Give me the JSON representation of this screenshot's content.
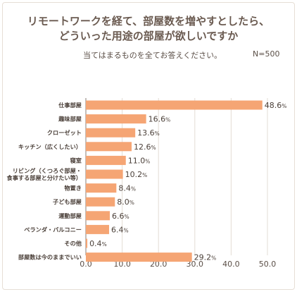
{
  "chart_data": {
    "type": "bar",
    "orientation": "horizontal",
    "title": "リモートワークを経て、部屋数を増やすとしたら、どういった用途の部屋が欲しいですか",
    "title_lines": [
      "リモートワークを経て、部屋数を増やすとしたら、",
      "どういった用途の部屋が欲しいですか"
    ],
    "subtitle": "当てはまるものを全てお答えください。",
    "sample_size": "N=500",
    "categories": [
      [
        "仕事部屋"
      ],
      [
        "趣味部屋"
      ],
      [
        "クローゼット"
      ],
      [
        "キッチン（広くしたい）"
      ],
      [
        "寝室"
      ],
      [
        "リビング（くつろぐ部屋・",
        "食事する部屋と分けたい等）"
      ],
      [
        "物置き"
      ],
      [
        "子ども部屋"
      ],
      [
        "運動部屋"
      ],
      [
        "ベランダ・バルコニー"
      ],
      [
        "その他"
      ],
      [
        "部屋数は今のままでいい"
      ]
    ],
    "values": [
      48.6,
      16.6,
      13.6,
      12.6,
      11.0,
      10.2,
      8.4,
      8.0,
      6.6,
      6.4,
      0.4,
      29.2
    ],
    "value_labels": [
      "48.6",
      "16.6",
      "13.6",
      "12.6",
      "11.0",
      "10.2",
      "8.4",
      "8.0",
      "6.6",
      "6.4",
      "0.4",
      "29.2"
    ],
    "value_unit": "%",
    "xlim": [
      0,
      50
    ],
    "xticks": [
      "0.0",
      "10.0",
      "20.0",
      "30.0",
      "40.0",
      "50.0"
    ],
    "grid": true,
    "bar_color": "#f5a574"
  }
}
